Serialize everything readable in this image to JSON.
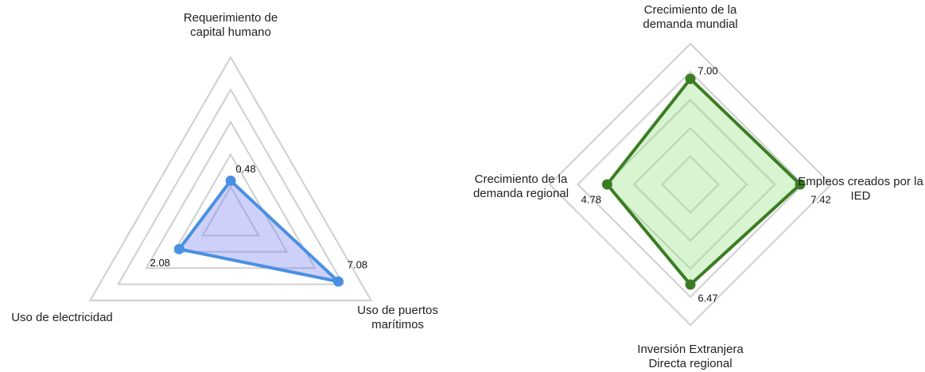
{
  "chart_data": [
    {
      "type": "radar",
      "categories": [
        "Requerimiento de capital humano",
        "Uso de puertos marítimos",
        "Uso de electricidad"
      ],
      "values": [
        0.48,
        7.08,
        2.08
      ],
      "value_labels": [
        "0.48",
        "7.08",
        "2.08"
      ],
      "rlim": [
        -2.5,
        10
      ],
      "color": "#4a90e2",
      "fill": "#6f7cf0"
    },
    {
      "type": "radar",
      "categories": [
        "Crecimiento de la demanda mundial",
        "Empleos creados por la IED",
        "Inversión Extranjera Directa regional",
        "Crecimiento de la demanda regional"
      ],
      "values": [
        7.0,
        7.42,
        6.47,
        4.78
      ],
      "value_labels": [
        "7.00",
        "7.42",
        "6.47",
        "4.78"
      ],
      "rlim": [
        -3.5,
        10.5
      ],
      "color": "#3b7d23",
      "fill": "#8fe07a"
    }
  ]
}
